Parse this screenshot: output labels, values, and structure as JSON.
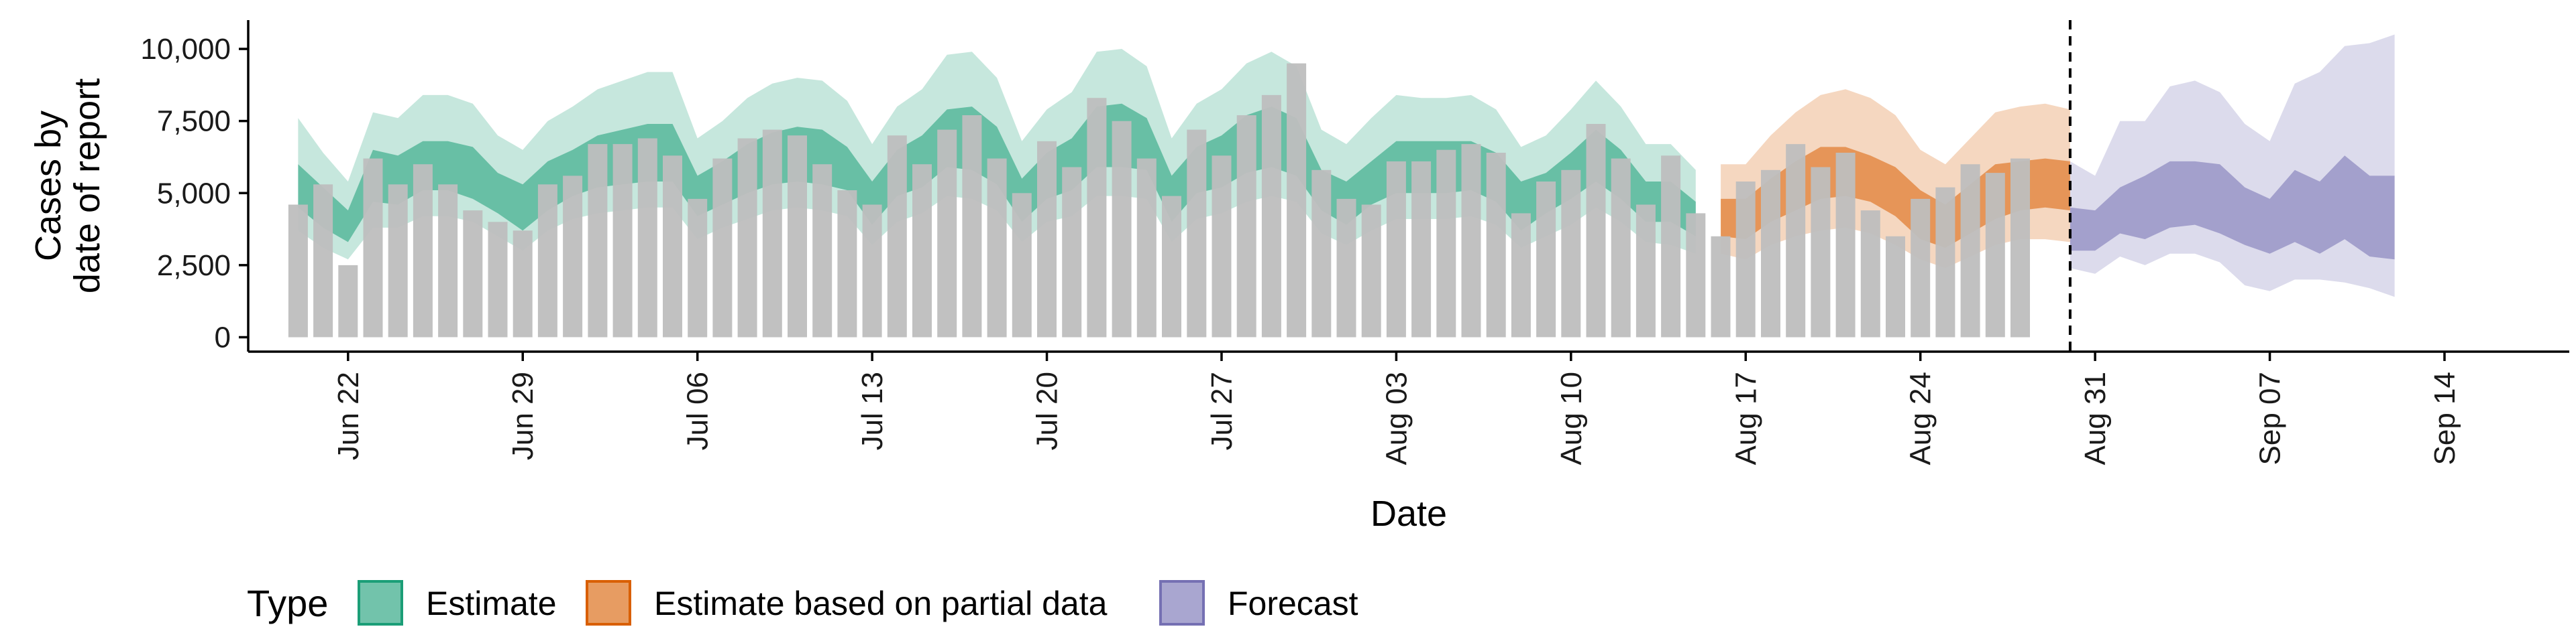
{
  "chart_data": {
    "type": "area",
    "xlabel": "Date",
    "ylabel_lines": [
      "Cases by",
      "date of report"
    ],
    "xlim": [
      "2024-06-18",
      "2024-09-19"
    ],
    "ylim": [
      -500,
      11000
    ],
    "y_ticks": [
      0,
      2500,
      5000,
      7500,
      10000
    ],
    "y_tick_labels": [
      "0",
      "2,500",
      "5,000",
      "7,500",
      "10,000"
    ],
    "x_ticks": [
      "2024-06-22",
      "2024-06-29",
      "2024-07-06",
      "2024-07-13",
      "2024-07-20",
      "2024-07-27",
      "2024-08-03",
      "2024-08-10",
      "2024-08-17",
      "2024-08-24",
      "2024-08-31",
      "2024-09-07",
      "2024-09-14"
    ],
    "x_tick_labels": [
      "Jun 22",
      "Jun 29",
      "Jul 06",
      "Jul 13",
      "Jul 20",
      "Jul 27",
      "Aug 03",
      "Aug 10",
      "Aug 17",
      "Aug 24",
      "Aug 31",
      "Sep 07",
      "Sep 14"
    ],
    "forecast_line_date": "2024-08-30",
    "bars": {
      "name": "Reported cases",
      "color": "#bebebe",
      "start_date": "2024-06-20",
      "values": [
        4600,
        5300,
        2500,
        6200,
        5300,
        6000,
        5300,
        4400,
        4000,
        3700,
        5300,
        5600,
        6700,
        6700,
        6900,
        6300,
        4800,
        6200,
        6900,
        7200,
        7000,
        6000,
        5100,
        4600,
        7000,
        6000,
        7200,
        7700,
        6200,
        5000,
        6800,
        5900,
        8300,
        7500,
        6200,
        4900,
        7200,
        6300,
        7700,
        8400,
        9500,
        5800,
        4800,
        4600,
        6100,
        6100,
        6500,
        6700,
        6400,
        4300,
        5400,
        5800,
        7400,
        6200,
        4600,
        6300,
        4300,
        3500,
        5400,
        5800,
        6700,
        5900,
        6400,
        4400,
        3500,
        4800,
        5200,
        6000,
        5700,
        6200
      ]
    },
    "series": [
      {
        "name": "Estimate",
        "color": "#1b9e77",
        "start_date": "2024-06-20",
        "median": [
          5100,
          4400,
          3700,
          5600,
          5400,
          6000,
          6000,
          5700,
          5000,
          4500,
          5200,
          5700,
          6100,
          6300,
          6500,
          6400,
          4900,
          5300,
          5800,
          6200,
          6400,
          6300,
          5800,
          4700,
          5700,
          6100,
          6900,
          7000,
          6400,
          4800,
          5600,
          6000,
          7000,
          7100,
          6600,
          4800,
          5700,
          6100,
          6700,
          7000,
          6600,
          5100,
          4700,
          5300,
          5900,
          5900,
          5900,
          6000,
          5600,
          4600,
          5000,
          5600,
          6300,
          5600,
          4700,
          4700,
          4100
        ],
        "low50": [
          4500,
          3800,
          3300,
          4700,
          4600,
          5100,
          5100,
          4800,
          4300,
          3700,
          4400,
          4900,
          5200,
          5300,
          5400,
          5400,
          4200,
          4600,
          5000,
          5300,
          5400,
          5300,
          5100,
          3900,
          4900,
          5200,
          5900,
          5800,
          5300,
          4000,
          4800,
          5100,
          5900,
          5900,
          5800,
          4000,
          5000,
          5200,
          5700,
          5900,
          5600,
          4400,
          3900,
          4600,
          5000,
          5000,
          5000,
          5100,
          4700,
          3700,
          4300,
          4800,
          5400,
          4800,
          4000,
          4000,
          3500
        ],
        "high50": [
          6000,
          5200,
          4400,
          6500,
          6300,
          6800,
          6800,
          6600,
          5700,
          5300,
          6100,
          6500,
          7000,
          7200,
          7400,
          7400,
          5600,
          6100,
          6700,
          7100,
          7300,
          7200,
          6600,
          5400,
          6500,
          7000,
          7900,
          8000,
          7300,
          5500,
          6400,
          6900,
          8000,
          8100,
          7600,
          5600,
          6600,
          7000,
          7700,
          8000,
          7600,
          5800,
          5400,
          6100,
          6800,
          6800,
          6800,
          6800,
          6400,
          5400,
          5700,
          6400,
          7200,
          6500,
          5400,
          5400,
          4700
        ],
        "low90": [
          3700,
          3100,
          2700,
          3800,
          3800,
          4200,
          4200,
          4000,
          3500,
          3000,
          3700,
          4100,
          4300,
          4400,
          4500,
          4500,
          3400,
          3800,
          4100,
          4400,
          4500,
          4400,
          4200,
          3200,
          4000,
          4300,
          4900,
          4800,
          4400,
          3300,
          4000,
          4200,
          4900,
          4900,
          4800,
          3300,
          4100,
          4300,
          4700,
          4900,
          4700,
          3600,
          3200,
          3700,
          4100,
          4100,
          4100,
          4200,
          3900,
          3100,
          3500,
          3900,
          4500,
          4000,
          3300,
          3200,
          2900
        ],
        "high90": [
          7600,
          6400,
          5400,
          7800,
          7600,
          8400,
          8400,
          8100,
          7000,
          6500,
          7500,
          8000,
          8600,
          8900,
          9200,
          9200,
          6900,
          7500,
          8300,
          8800,
          9000,
          8900,
          8200,
          6700,
          8000,
          8600,
          9800,
          9900,
          9000,
          6800,
          7900,
          8500,
          9900,
          10000,
          9400,
          6900,
          8100,
          8600,
          9500,
          9900,
          9400,
          7200,
          6700,
          7600,
          8400,
          8300,
          8300,
          8400,
          7900,
          6600,
          7000,
          7900,
          8900,
          8000,
          6700,
          6700,
          5800
        ]
      },
      {
        "name": "Estimate based on partial data",
        "color": "#d95f02",
        "start_date": "2024-08-16",
        "median": [
          4100,
          4000,
          4600,
          5200,
          5800,
          6000,
          5700,
          5100,
          4200,
          3700,
          4300,
          5000,
          5400,
          5600,
          5500
        ],
        "low50": [
          3500,
          3400,
          4000,
          4400,
          4800,
          4900,
          4700,
          4200,
          3400,
          3100,
          3600,
          4100,
          4400,
          4500,
          4400
        ],
        "high50": [
          4800,
          4800,
          5500,
          6100,
          6600,
          6600,
          6300,
          5900,
          5100,
          4600,
          5300,
          6000,
          6100,
          6200,
          6100
        ],
        "low90": [
          2900,
          2700,
          3200,
          3500,
          3700,
          3800,
          3600,
          3200,
          2700,
          2400,
          2800,
          3200,
          3400,
          3400,
          3300
        ],
        "high90": [
          6000,
          6000,
          7000,
          7800,
          8400,
          8600,
          8300,
          7700,
          6500,
          6000,
          6900,
          7800,
          8000,
          8100,
          7900
        ]
      },
      {
        "name": "Forecast",
        "color": "#7570b3",
        "start_date": "2024-08-30",
        "median": [
          3900,
          3700,
          4200,
          4600,
          4800,
          4900,
          4700,
          4100,
          3500,
          3900,
          4300,
          4600,
          4400,
          4200
        ],
        "low50": [
          3000,
          3000,
          3600,
          3400,
          3800,
          3900,
          3600,
          3200,
          2900,
          3300,
          2900,
          3400,
          2800,
          2700
        ],
        "high50": [
          4500,
          4400,
          5200,
          5600,
          6100,
          6100,
          6000,
          5200,
          4800,
          5800,
          5400,
          6300,
          5600,
          5600
        ],
        "low90": [
          2400,
          2200,
          2800,
          2500,
          2900,
          2900,
          2600,
          1800,
          1600,
          2000,
          2000,
          1900,
          1700,
          1400
        ],
        "high90": [
          6100,
          5600,
          7500,
          7500,
          8700,
          8900,
          8500,
          7400,
          6800,
          8800,
          9200,
          10100,
          10200,
          10500
        ]
      }
    ],
    "legend": {
      "title": "Type",
      "position": "bottom",
      "items": [
        {
          "label": "Estimate",
          "color": "#1b9e77"
        },
        {
          "label": "Estimate based on partial data",
          "color": "#d95f02"
        },
        {
          "label": "Forecast",
          "color": "#7570b3"
        }
      ]
    }
  }
}
